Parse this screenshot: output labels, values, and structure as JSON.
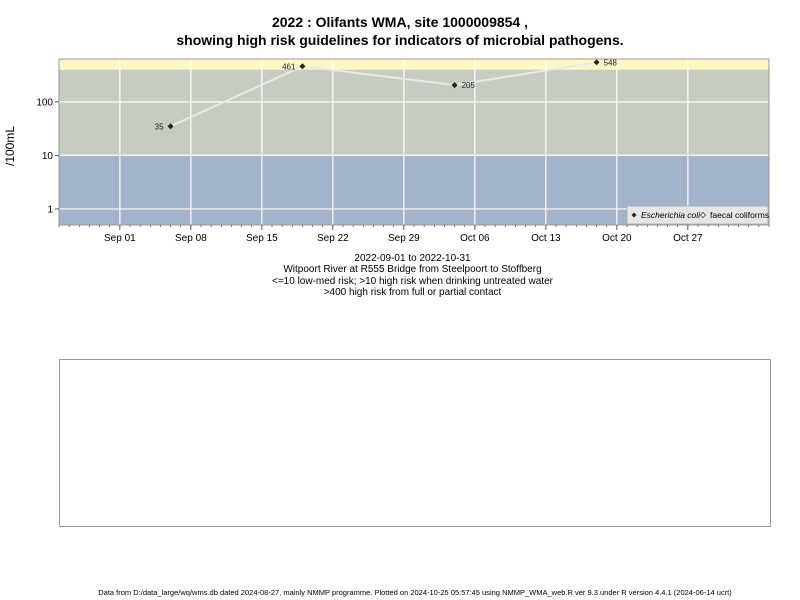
{
  "title": {
    "line1": "2022 : Olifants WMA, site 1000009854 ,",
    "line2": "showing high risk guidelines for indicators of microbial pathogens."
  },
  "chart_data": {
    "type": "scatter",
    "title": "2022 : Olifants WMA, site 1000009854 , showing high risk guidelines for indicators of microbial pathogens.",
    "xlabel": "",
    "ylabel": "/100mL",
    "y_scale": "log",
    "x_range": [
      "2022-08-26",
      "2022-11-04"
    ],
    "y_range_log10": [
      -0.3,
      2.8
    ],
    "x_ticks": [
      {
        "date": "2022-09-01",
        "label": "Sep 01"
      },
      {
        "date": "2022-09-08",
        "label": "Sep 08"
      },
      {
        "date": "2022-09-15",
        "label": "Sep 15"
      },
      {
        "date": "2022-09-22",
        "label": "Sep 22"
      },
      {
        "date": "2022-09-29",
        "label": "Sep 29"
      },
      {
        "date": "2022-10-06",
        "label": "Oct 06"
      },
      {
        "date": "2022-10-13",
        "label": "Oct 13"
      },
      {
        "date": "2022-10-20",
        "label": "Oct 20"
      },
      {
        "date": "2022-10-27",
        "label": "Oct 27"
      }
    ],
    "y_ticks": [
      {
        "value": 1,
        "label": "1"
      },
      {
        "value": 10,
        "label": "10"
      },
      {
        "value": 100,
        "label": "100"
      }
    ],
    "risk_bands": [
      {
        "from": 0.5,
        "to": 10,
        "color": "#a2b3cb"
      },
      {
        "from": 10,
        "to": 400,
        "color": "#c4cdc0"
      },
      {
        "from": 400,
        "to": 630,
        "color": "#fff7c4"
      }
    ],
    "series": [
      {
        "name": "Escherichia coli",
        "marker": "filled-diamond",
        "color": "#222222",
        "line_color": "#e8e8e8",
        "points": [
          {
            "x": "2022-09-06",
            "y": 35,
            "label": "35"
          },
          {
            "x": "2022-09-19",
            "y": 461,
            "label": "461"
          },
          {
            "x": "2022-10-04",
            "y": 205,
            "label": "205"
          },
          {
            "x": "2022-10-18",
            "y": 548,
            "label": "548"
          }
        ]
      },
      {
        "name": "faecal coliforms",
        "marker": "open-diamond",
        "color": "#ffffff",
        "points": []
      }
    ],
    "grid": true,
    "legend_position": "bottom-right"
  },
  "below_text": {
    "daterange": "2022-09-01 to 2022-10-31",
    "site": "Witpoort River at R555 Bridge from Steelpoort to Stoffberg",
    "risk1": "<=10 low-med risk; >10 high risk when drinking untreated water",
    "risk2": ">400 high risk from full or partial contact"
  },
  "footer": "Data from D:/data_large/wq/wms.db dated 2024-08-27, mainly NMMP programme. Plotted on 2024-10-25 05:57:45 using NMMP_WMA_web.R ver 9.3 under R version 4.4.1 (2024-06-14 ucrt)"
}
